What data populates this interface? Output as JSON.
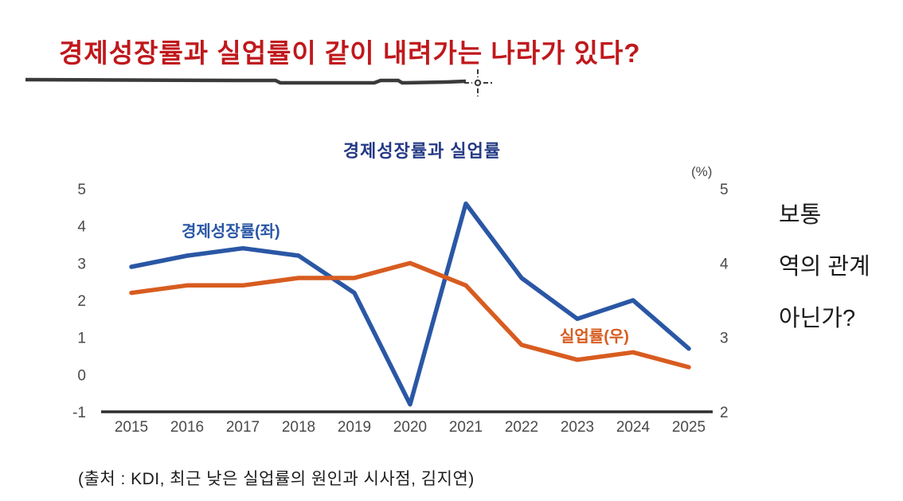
{
  "slide": {
    "title": "경제성장률과 실업률이 같이 내려가는 나라가 있다?",
    "title_color": "#c0181c",
    "underline_color": "#3a3a3a",
    "annotation": {
      "line1": "보통",
      "line2": "역의 관계",
      "line3": "아닌가?"
    },
    "source": "(출처 : KDI, 최근 낮은 실업률의 원인과 시사점, 김지연)"
  },
  "chart_data": {
    "type": "line",
    "title": "경제성장률과 실업률",
    "title_color": "#253a85",
    "x": [
      2015,
      2016,
      2017,
      2018,
      2019,
      2020,
      2021,
      2022,
      2023,
      2024,
      2025
    ],
    "axes": {
      "left": {
        "ticks": [
          5,
          4,
          3,
          2,
          1,
          0,
          -1
        ],
        "range": [
          -1,
          5
        ]
      },
      "right": {
        "ticks": [
          5,
          4,
          3,
          2
        ],
        "range": [
          2,
          5
        ],
        "unit_label": "(%)"
      }
    },
    "series": [
      {
        "name": "경제성장률(좌)",
        "axis": "left",
        "color": "#2a57a5",
        "values": [
          2.9,
          3.2,
          3.4,
          3.2,
          2.2,
          -0.8,
          4.6,
          2.6,
          1.5,
          2.0,
          0.7
        ]
      },
      {
        "name": "실업률(우)",
        "axis": "right",
        "color": "#d85c20",
        "values": [
          3.6,
          3.7,
          3.7,
          3.8,
          3.8,
          4.0,
          3.7,
          2.9,
          2.7,
          2.8,
          2.6
        ]
      }
    ],
    "grid": false,
    "legend": "inline-labels",
    "axis_text_color": "#4a4a4a",
    "axis_line_color": "#2e2e2e"
  }
}
